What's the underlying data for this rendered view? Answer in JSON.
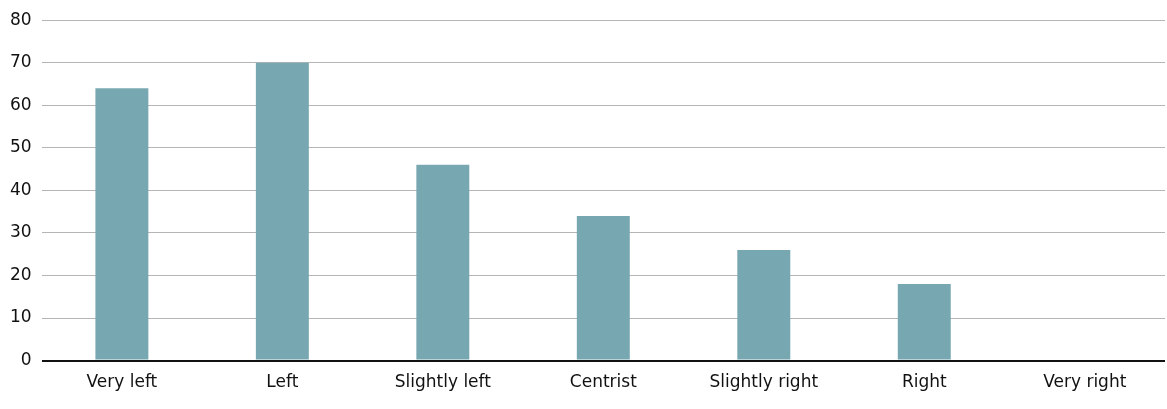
{
  "chart_data": {
    "type": "bar",
    "categories": [
      "Very left",
      "Left",
      "Slightly left",
      "Centrist",
      "Slightly right",
      "Right",
      "Very right"
    ],
    "values": [
      64,
      70,
      46,
      34,
      26,
      18,
      0
    ],
    "color": "#77a8b1",
    "ylim": [
      0,
      80
    ],
    "yticks": [
      0,
      10,
      20,
      30,
      40,
      50,
      60,
      70,
      80
    ],
    "grid": "y",
    "legend": false
  }
}
